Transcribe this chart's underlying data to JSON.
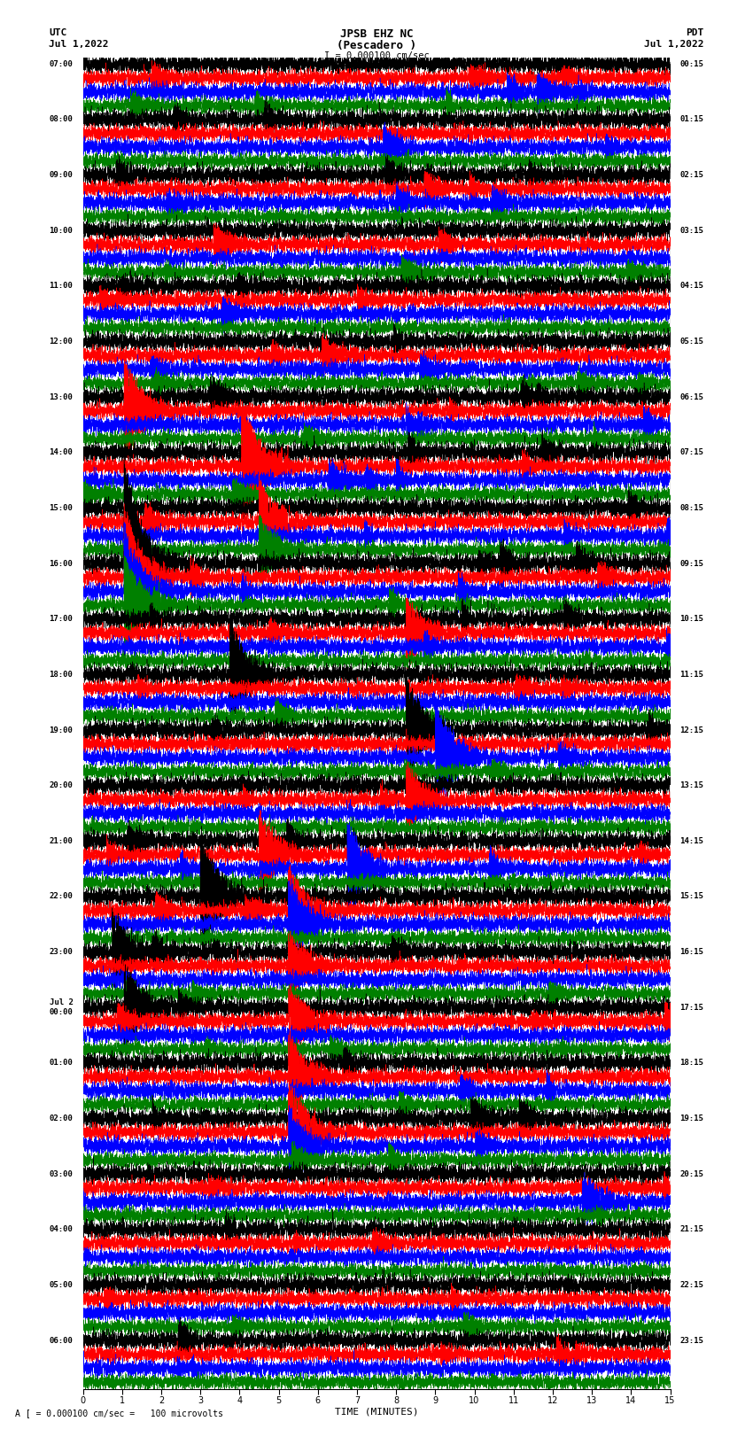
{
  "title_line1": "JPSB EHZ NC",
  "title_line2": "(Pescadero )",
  "title_scale": "I = 0.000100 cm/sec",
  "left_header_line1": "UTC",
  "left_header_line2": "Jul 1,2022",
  "right_header_line1": "PDT",
  "right_header_line2": "Jul 1,2022",
  "bottom_label": "TIME (MINUTES)",
  "bottom_note": "A [ = 0.000100 cm/sec =   100 microvolts",
  "colors": [
    "black",
    "red",
    "blue",
    "green"
  ],
  "utc_labels": [
    "07:00",
    "08:00",
    "09:00",
    "10:00",
    "11:00",
    "12:00",
    "13:00",
    "14:00",
    "15:00",
    "16:00",
    "17:00",
    "18:00",
    "19:00",
    "20:00",
    "21:00",
    "22:00",
    "23:00",
    "Jul 2\n00:00",
    "01:00",
    "02:00",
    "03:00",
    "04:00",
    "05:00",
    "06:00"
  ],
  "pdt_labels": [
    "00:15",
    "01:15",
    "02:15",
    "03:15",
    "04:15",
    "05:15",
    "06:15",
    "07:15",
    "08:15",
    "09:15",
    "10:15",
    "11:15",
    "12:15",
    "13:15",
    "14:15",
    "15:15",
    "16:15",
    "17:15",
    "18:15",
    "19:15",
    "20:15",
    "21:15",
    "22:15",
    "23:15"
  ],
  "num_hour_blocks": 24,
  "traces_per_block": 4,
  "x_min": 0,
  "x_max": 15,
  "noise_seed": 12345
}
